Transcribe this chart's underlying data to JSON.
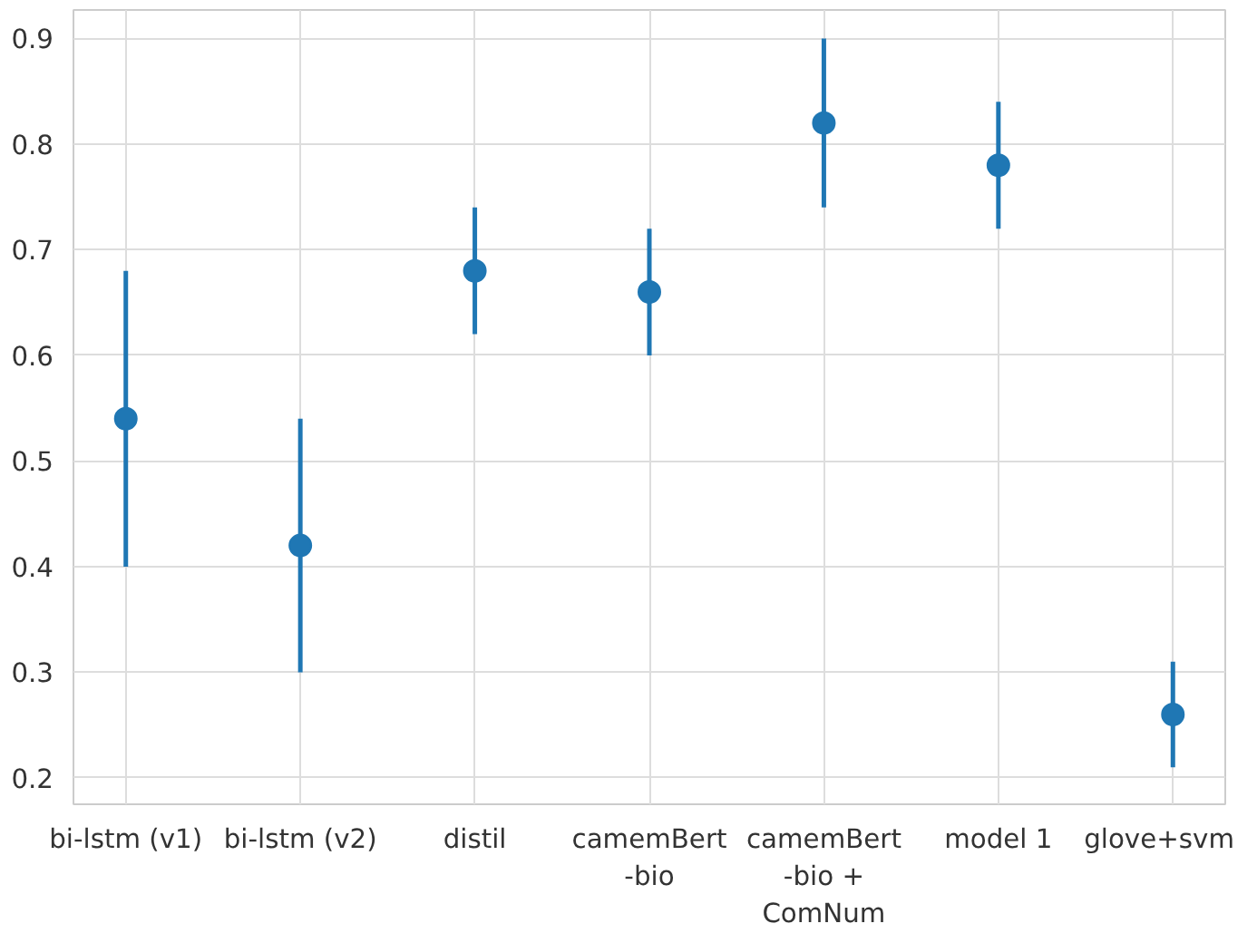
{
  "chart_data": {
    "type": "scatter",
    "categories": [
      "bi-lstm (v1)",
      "bi-lstm (v2)",
      "distil",
      "camemBert\n-bio",
      "camemBert\n-bio +\nComNum",
      "model 1",
      "glove+svm"
    ],
    "values": [
      0.54,
      0.42,
      0.68,
      0.66,
      0.82,
      0.78,
      0.26
    ],
    "errors": [
      [
        0.4,
        0.68
      ],
      [
        0.3,
        0.54
      ],
      [
        0.62,
        0.74
      ],
      [
        0.6,
        0.72
      ],
      [
        0.74,
        0.9
      ],
      [
        0.72,
        0.84
      ],
      [
        0.21,
        0.31
      ]
    ],
    "color": "#1f77b4",
    "marker": "circle",
    "grid": true,
    "ylim": [
      0.175,
      0.927
    ],
    "yticks": [
      0.2,
      0.3,
      0.4,
      0.5,
      0.6,
      0.7,
      0.8,
      0.9
    ]
  }
}
